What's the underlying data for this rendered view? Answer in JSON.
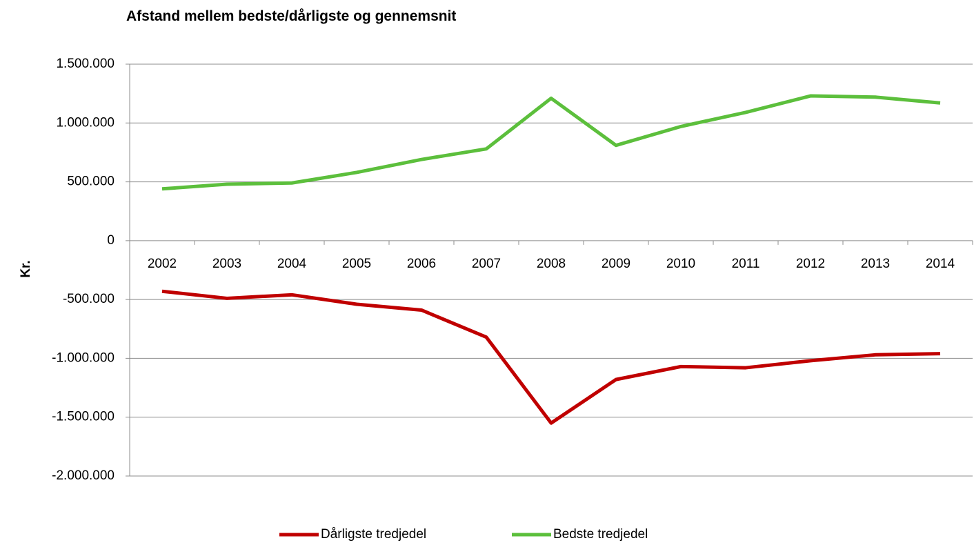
{
  "chart_data": {
    "type": "line",
    "title": "Afstand mellem bedste/dårligste og gennemsnit",
    "y_label": "Kr.",
    "categories": [
      "2002",
      "2003",
      "2004",
      "2005",
      "2006",
      "2007",
      "2008",
      "2009",
      "2010",
      "2011",
      "2012",
      "2013",
      "2014"
    ],
    "series": [
      {
        "name": "Dårligste tredjedel",
        "color": "#c00000",
        "values": [
          -430000,
          -490000,
          -460000,
          -540000,
          -590000,
          -820000,
          -1550000,
          -1180000,
          -1070000,
          -1080000,
          -1020000,
          -970000,
          -960000
        ]
      },
      {
        "name": "Bedste tredjedel",
        "color": "#5cbf3c",
        "values": [
          440000,
          480000,
          490000,
          580000,
          690000,
          780000,
          1210000,
          810000,
          970000,
          1090000,
          1230000,
          1220000,
          1170000
        ]
      }
    ],
    "ylim": [
      -2000000,
      1500000
    ],
    "yticks": [
      {
        "value": -2000000,
        "label": "-2.000.000"
      },
      {
        "value": -1500000,
        "label": "-1.500.000"
      },
      {
        "value": -1000000,
        "label": "-1.000.000"
      },
      {
        "value": -500000,
        "label": "-500.000"
      },
      0,
      {
        "value": 500000,
        "label": "500.000"
      },
      {
        "value": 1000000,
        "label": "1.000.000"
      },
      {
        "value": 1500000,
        "label": "1.500.000"
      }
    ],
    "grid": true,
    "legend": "bottom"
  }
}
